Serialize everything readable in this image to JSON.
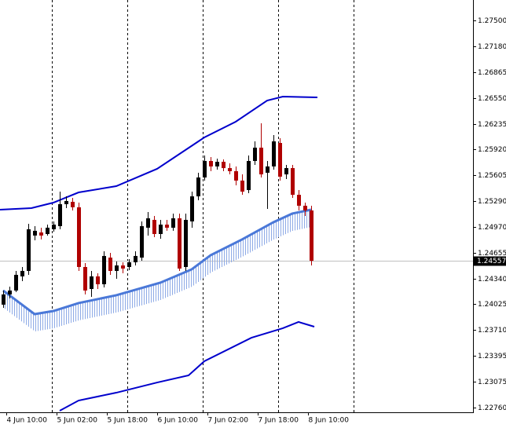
{
  "chart_data": {
    "type": "candlestick",
    "up_color": "#000000",
    "down_color": "#b00000",
    "open": [
      1.2402,
      1.24145,
      1.24193,
      1.24366,
      1.24433,
      1.24866,
      1.24904,
      1.24885,
      1.24943,
      1.24981,
      1.2525,
      1.25279,
      1.25212,
      1.24481,
      1.24212,
      1.24366,
      1.2427,
      1.24596,
      1.24433,
      1.245,
      1.24481,
      1.24539,
      1.24596,
      1.24962,
      1.25058,
      1.24885,
      1.25,
      1.24962,
      1.25077,
      1.24481,
      1.25039,
      1.25346,
      1.25577,
      1.25779,
      1.25712,
      1.25769,
      1.25692,
      1.25654,
      1.25539,
      1.25423,
      1.25779,
      1.25942,
      1.25635,
      1.25712,
      1.26,
      1.25615,
      1.25692,
      1.25365,
      1.25231,
      1.25173
    ],
    "high": [
      1.24193,
      1.24241,
      1.24433,
      1.24481,
      1.2501,
      1.24981,
      1.24962,
      1.25,
      1.25039,
      1.25404,
      1.25346,
      1.25327,
      1.25269,
      1.24529,
      1.24433,
      1.24404,
      1.24673,
      1.24654,
      1.24548,
      1.24539,
      1.24577,
      1.24673,
      1.25039,
      1.25154,
      1.25106,
      1.25058,
      1.25058,
      1.25135,
      1.25135,
      1.25135,
      1.25404,
      1.25635,
      1.25846,
      1.25827,
      1.25808,
      1.25798,
      1.2575,
      1.25712,
      1.25615,
      1.25846,
      1.26019,
      1.2624,
      1.25779,
      1.26096,
      1.26058,
      1.25731,
      1.25731,
      1.25423,
      1.25269,
      1.25231
    ],
    "low": [
      1.23981,
      1.24096,
      1.24174,
      1.24308,
      1.24385,
      1.24808,
      1.24818,
      1.24866,
      1.24914,
      1.24943,
      1.25202,
      1.25173,
      1.24433,
      1.24145,
      1.24116,
      1.24212,
      1.24231,
      1.24385,
      1.24337,
      1.24404,
      1.24442,
      1.245,
      1.24558,
      1.24866,
      1.24846,
      1.24827,
      1.24924,
      1.24924,
      1.24433,
      1.24433,
      1.24962,
      1.25298,
      1.25539,
      1.25654,
      1.25673,
      1.25654,
      1.25615,
      1.25481,
      1.25365,
      1.25385,
      1.25731,
      1.25577,
      1.25192,
      1.25673,
      1.25539,
      1.25558,
      1.25327,
      1.25173,
      1.25106,
      1.245
    ],
    "close": [
      1.24145,
      1.24193,
      1.24385,
      1.24433,
      1.24943,
      1.24924,
      1.24866,
      1.24962,
      1.25,
      1.2525,
      1.25289,
      1.25212,
      1.24481,
      1.24193,
      1.24366,
      1.2427,
      1.24616,
      1.24433,
      1.245,
      1.24462,
      1.24539,
      1.24616,
      1.24981,
      1.25077,
      1.24885,
      1.25,
      1.24962,
      1.25077,
      1.24462,
      1.25058,
      1.25346,
      1.25577,
      1.25779,
      1.25712,
      1.25769,
      1.25692,
      1.25654,
      1.25539,
      1.25404,
      1.25779,
      1.25942,
      1.25615,
      1.25712,
      1.26019,
      1.25587,
      1.25692,
      1.25365,
      1.25231,
      1.25173,
      1.24557
    ],
    "series": [
      {
        "color": "#0000cc",
        "x": [
          -0.5,
          4.5,
          8,
          12,
          18,
          24.5,
          32,
          37,
          42,
          44.5,
          50
        ],
        "values": [
          1.25183,
          1.25202,
          1.25269,
          1.25394,
          1.25471,
          1.25683,
          1.26067,
          1.2626,
          1.26519,
          1.26567,
          1.26558
        ]
      },
      {
        "color": "#4a78d8",
        "hatch_color": "#8eaae6",
        "x": [
          0,
          5,
          8,
          12,
          18,
          25,
          30,
          33,
          38,
          43,
          46,
          49
        ],
        "values": [
          1.24193,
          1.23904,
          1.23942,
          1.24039,
          1.24135,
          1.24289,
          1.24452,
          1.24625,
          1.24818,
          1.25029,
          1.25135,
          1.25183
        ]
      },
      {
        "color": "#0000cc",
        "x": [
          9,
          12,
          18,
          24.5,
          29.5,
          32,
          39.5,
          44.5,
          47,
          49.5
        ],
        "values": [
          1.22721,
          1.22846,
          1.22942,
          1.23067,
          1.23154,
          1.23327,
          1.23615,
          1.23731,
          1.23808,
          1.2375
        ]
      }
    ],
    "current_price": {
      "value": 1.24557,
      "label": "1.24557"
    },
    "xlim": [
      -0.5,
      74.75
    ],
    "ylim": [
      1.22702,
      1.2775
    ],
    "separators": [
      7.75,
      19.75,
      31.75,
      43.75,
      55.75
    ],
    "xticks": [
      {
        "value": 0.5,
        "label": "4 Jun 10:00"
      },
      {
        "value": 8.5,
        "label": "5 Jun 02:00"
      },
      {
        "value": 16.5,
        "label": "5 Jun 18:00"
      },
      {
        "value": 24.5,
        "label": "6 Jun 10:00"
      },
      {
        "value": 32.5,
        "label": "7 Jun 02:00"
      },
      {
        "value": 40.5,
        "label": "7 Jun 18:00"
      },
      {
        "value": 48.5,
        "label": "8 Jun 10:00"
      }
    ],
    "yticks": [
      {
        "value": 1.275,
        "label": "1.27500"
      },
      {
        "value": 1.2718,
        "label": "1.27180"
      },
      {
        "value": 1.26865,
        "label": "1.26865"
      },
      {
        "value": 1.2655,
        "label": "1.26550"
      },
      {
        "value": 1.26235,
        "label": "1.26235"
      },
      {
        "value": 1.2592,
        "label": "1.25920"
      },
      {
        "value": 1.25605,
        "label": "1.25605"
      },
      {
        "value": 1.2529,
        "label": "1.25290"
      },
      {
        "value": 1.2497,
        "label": "1.24970"
      },
      {
        "value": 1.24655,
        "label": "1.24655"
      },
      {
        "value": 1.2434,
        "label": "1.24340"
      },
      {
        "value": 1.24025,
        "label": "1.24025"
      },
      {
        "value": 1.2371,
        "label": "1.23710"
      },
      {
        "value": 1.23395,
        "label": "1.23395"
      },
      {
        "value": 1.23075,
        "label": "1.23075"
      },
      {
        "value": 1.2276,
        "label": "1.22760"
      }
    ]
  }
}
